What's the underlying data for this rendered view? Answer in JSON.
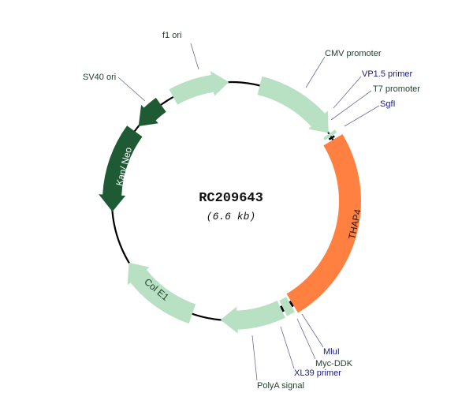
{
  "plasmid": {
    "name": "RC209643",
    "size": "(6.6 kb)"
  },
  "colors": {
    "backbone": "#000000",
    "light_feature": "#b8e0c2",
    "dark_feature": "#1e5a33",
    "insert": "#ff8040",
    "feature_label": "#1f3d2b",
    "site_label": "#1a1a80"
  },
  "features": {
    "f1_ori": "f1 ori",
    "sv40_ori": "SV40 ori",
    "kan_neo": "Kan/ Neo",
    "cmv": "CMV promoter",
    "vp15": "VP1.5 primer",
    "t7": "T7 promoter",
    "sgfi": "SgfI",
    "thap4": "THAP4",
    "mlui": "MluI",
    "myc_ddk": "Myc-DDK",
    "xl39": "XL39 primer",
    "polya": "PolyA signal",
    "col_e1": "Col E1"
  }
}
